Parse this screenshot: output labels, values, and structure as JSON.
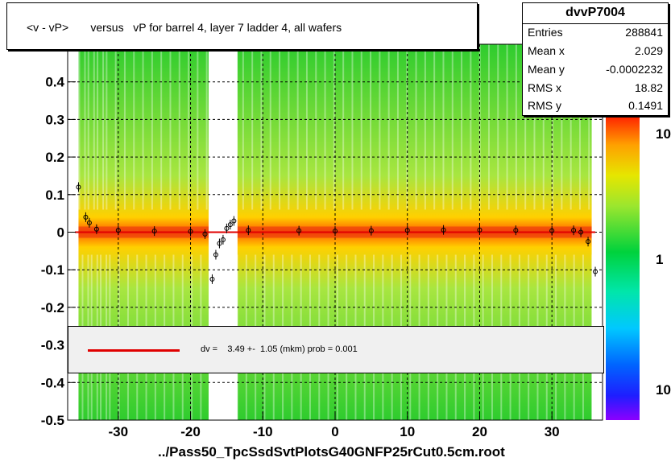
{
  "title": "<v - vP>       versus   vP for barrel 4, layer 7 ladder 4, all wafers",
  "stats": {
    "name": "dvvP7004",
    "rows": [
      {
        "label": "Entries",
        "value": "288841"
      },
      {
        "label": "Mean x",
        "value": "2.029"
      },
      {
        "label": "Mean y",
        "value": "-0.0002232"
      },
      {
        "label": "RMS x",
        "value": "18.82"
      },
      {
        "label": "RMS y",
        "value": "0.1491"
      }
    ]
  },
  "legend": {
    "text": "dv =    3.49 +-  1.05 (mkm) prob = 0.001",
    "line_color": "#e00000"
  },
  "footer": "../Pass50_TpcSsdSvtPlotsG40GNFP25rCut0.5cm.root",
  "colorbar": {
    "tick_labels": [
      "10",
      "1",
      "10"
    ]
  },
  "chart_data": {
    "type": "heatmap",
    "title": "<v - vP>       versus   vP for barrel 4, layer 7 ladder 4, all wafers",
    "xlim": [
      -37,
      37
    ],
    "ylim": [
      -0.5,
      0.5
    ],
    "x_ticks": [
      -30,
      -20,
      -10,
      0,
      10,
      20,
      30
    ],
    "y_ticks": [
      -0.5,
      -0.4,
      -0.3,
      -0.2,
      -0.1,
      0,
      0.1,
      0.2,
      0.3,
      0.4
    ],
    "y_tick_labels": [
      "-0.5",
      "-0.4",
      "-0.3",
      "-0.2",
      "-0.1",
      "0",
      "0.1",
      "0.2",
      "0.3",
      "0.4"
    ],
    "grid": true,
    "fit": {
      "value": 0.0,
      "xrange": [
        -36,
        36
      ],
      "color": "#e00000"
    },
    "profile_points": [
      {
        "x": -35.5,
        "y": 0.12
      },
      {
        "x": -34.5,
        "y": 0.04
      },
      {
        "x": -34,
        "y": 0.025
      },
      {
        "x": -33,
        "y": 0.008
      },
      {
        "x": -30,
        "y": 0.005
      },
      {
        "x": -25,
        "y": 0.003
      },
      {
        "x": -20,
        "y": 0.002
      },
      {
        "x": -18,
        "y": -0.005
      },
      {
        "x": -17,
        "y": -0.125
      },
      {
        "x": -16.5,
        "y": -0.06
      },
      {
        "x": -16,
        "y": -0.03
      },
      {
        "x": -15.5,
        "y": -0.02
      },
      {
        "x": -15,
        "y": 0.01
      },
      {
        "x": -14.5,
        "y": 0.02
      },
      {
        "x": -14,
        "y": 0.03
      },
      {
        "x": -12,
        "y": 0.005
      },
      {
        "x": -5,
        "y": 0.004
      },
      {
        "x": 0,
        "y": 0.003
      },
      {
        "x": 5,
        "y": 0.004
      },
      {
        "x": 10,
        "y": 0.005
      },
      {
        "x": 15,
        "y": 0.006
      },
      {
        "x": 20,
        "y": 0.006
      },
      {
        "x": 25,
        "y": 0.005
      },
      {
        "x": 30,
        "y": 0.004
      },
      {
        "x": 33,
        "y": 0.005
      },
      {
        "x": 34,
        "y": 0.0
      },
      {
        "x": 35,
        "y": -0.025
      },
      {
        "x": 36,
        "y": -0.105
      }
    ],
    "density_gaps_x": [
      [
        -17.5,
        -13.5
      ]
    ]
  }
}
